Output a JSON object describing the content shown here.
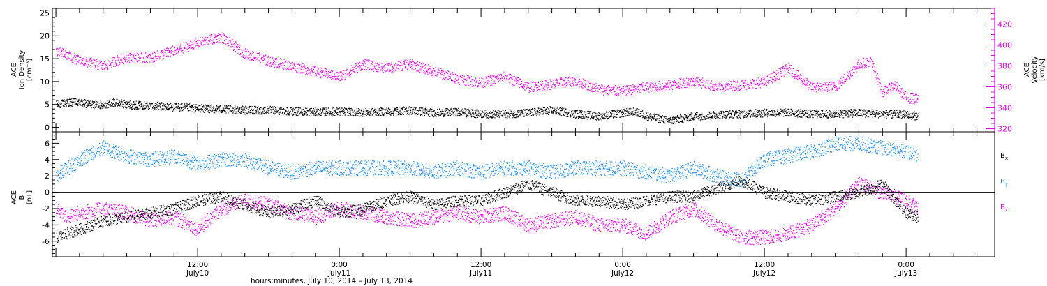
{
  "colors": {
    "density": "#000000",
    "velocity": "#ee00ee",
    "bx": "#000000",
    "by": "#1e90ff",
    "bz": "#ee00ee",
    "axis": "#000000"
  },
  "x_axis": {
    "title": "hours:minutes, July 10, 2014 – July 13, 2014",
    "ticks": [
      {
        "hours": 12,
        "time": "12:00",
        "date": "July10"
      },
      {
        "hours": 24,
        "time": "0:00",
        "date": "July11"
      },
      {
        "hours": 36,
        "time": "12:00",
        "date": "July11"
      },
      {
        "hours": 48,
        "time": "0:00",
        "date": "July12"
      },
      {
        "hours": 60,
        "time": "12:00",
        "date": "July12"
      },
      {
        "hours": 72,
        "time": "0:00",
        "date": "July13"
      }
    ]
  },
  "panel1": {
    "ylabel_lines": [
      "ACE",
      "Ion Density",
      "[cm⁻³]"
    ],
    "y2label_lines": [
      "ACE",
      "Velocity",
      "[km/s]"
    ]
  },
  "panel2": {
    "ylabel_lines": [
      "ACE",
      "B",
      "[nT]"
    ],
    "legend": [
      {
        "label": "B",
        "sub": "x",
        "color_key": "bx"
      },
      {
        "label": "B",
        "sub": "y",
        "color_key": "by"
      },
      {
        "label": "B",
        "sub": "z",
        "color_key": "bz"
      }
    ]
  },
  "chart_data": [
    {
      "type": "scatter",
      "ylabel": "ACE Ion Density [cm⁻³]",
      "y2label": "ACE Velocity [km/s]",
      "xlim_hours": [
        -0.3,
        79.5
      ],
      "ylim": [
        -1,
        26
      ],
      "y2lim": [
        317,
        435
      ],
      "yticks": [
        0,
        5,
        10,
        15,
        20,
        25
      ],
      "y2ticks": [
        320,
        340,
        360,
        380,
        400,
        420
      ],
      "grid": false,
      "series": [
        {
          "name": "Ion Density",
          "axis": "left",
          "color_key": "density",
          "x_hours": [
            0,
            1,
            2,
            3,
            4,
            5,
            6,
            8,
            10,
            12,
            14,
            16,
            18,
            20,
            22,
            24,
            26,
            28,
            30,
            32,
            34,
            36,
            38,
            40,
            42,
            44,
            46,
            48,
            49,
            50,
            52,
            54,
            56,
            58,
            60,
            62,
            64,
            66,
            68,
            70,
            72,
            73
          ],
          "y": [
            5,
            5.5,
            5.5,
            5,
            5,
            5.5,
            5,
            4.8,
            4.5,
            4.2,
            4,
            3.8,
            3.8,
            3.6,
            3.4,
            3.5,
            3.3,
            3.5,
            3.8,
            3.2,
            3.4,
            3,
            3,
            3.2,
            3.8,
            3,
            2.5,
            3.2,
            3.5,
            2.5,
            1.5,
            2.5,
            2.8,
            3,
            3.2,
            3.3,
            3,
            3,
            3.2,
            3,
            2.8,
            2.5
          ]
        },
        {
          "name": "Velocity",
          "axis": "right",
          "color_key": "velocity",
          "x_hours": [
            0,
            1,
            2,
            3,
            4,
            5,
            6,
            8,
            10,
            12,
            14,
            16,
            18,
            20,
            22,
            24,
            26,
            28,
            30,
            32,
            34,
            36,
            38,
            40,
            42,
            44,
            46,
            48,
            50,
            52,
            54,
            56,
            58,
            60,
            62,
            64,
            66,
            68,
            69,
            70,
            71,
            72,
            73
          ],
          "y": [
            395,
            390,
            385,
            383,
            380,
            385,
            388,
            388,
            395,
            402,
            408,
            392,
            385,
            380,
            375,
            370,
            382,
            378,
            382,
            375,
            368,
            364,
            370,
            360,
            363,
            366,
            358,
            356,
            360,
            362,
            366,
            360,
            362,
            365,
            378,
            360,
            360,
            382,
            385,
            355,
            362,
            350,
            348
          ]
        }
      ]
    },
    {
      "type": "scatter",
      "ylabel": "ACE B [nT]",
      "xlim_hours": [
        -0.3,
        79.5
      ],
      "ylim": [
        -7.9,
        7.4
      ],
      "yticks": [
        -6,
        -4,
        -2,
        0,
        2,
        4,
        6
      ],
      "zero_line": true,
      "grid": false,
      "series": [
        {
          "name": "Bx",
          "color_key": "bx",
          "x_hours": [
            0,
            1,
            2,
            4,
            6,
            8,
            10,
            12,
            14,
            16,
            18,
            20,
            22,
            24,
            26,
            28,
            30,
            32,
            34,
            36,
            38,
            40,
            42,
            44,
            46,
            48,
            50,
            52,
            54,
            56,
            58,
            60,
            62,
            64,
            66,
            68,
            70,
            72,
            73
          ],
          "y": [
            -5.5,
            -5,
            -4.5,
            -3.5,
            -3,
            -2.5,
            -2,
            -1,
            -0.5,
            -1.5,
            -2.5,
            -2,
            -1,
            -2.5,
            -2,
            -1,
            -0.5,
            -1.5,
            -1,
            -1,
            0,
            1,
            0,
            -1,
            -1,
            -1.5,
            -1,
            -0.5,
            -0.5,
            0.5,
            1.5,
            0,
            -0.5,
            -1,
            -0.5,
            0,
            1,
            -2.5,
            -3
          ]
        },
        {
          "name": "By",
          "color_key": "by",
          "x_hours": [
            0,
            1,
            2,
            4,
            6,
            8,
            10,
            12,
            14,
            16,
            18,
            20,
            22,
            24,
            26,
            28,
            30,
            32,
            34,
            36,
            38,
            40,
            42,
            44,
            46,
            48,
            50,
            52,
            54,
            56,
            58,
            60,
            62,
            64,
            66,
            68,
            70,
            72,
            73
          ],
          "y": [
            2,
            3,
            4,
            5.5,
            4.5,
            4,
            4.5,
            3.5,
            4,
            4,
            3,
            2.5,
            3,
            3,
            3,
            3,
            3,
            2.5,
            3,
            2.5,
            3,
            3,
            2.5,
            3,
            3,
            3,
            2.5,
            2,
            3,
            2,
            1.5,
            4,
            4.5,
            5,
            6,
            6,
            5.5,
            5,
            4.5
          ]
        },
        {
          "name": "Bz",
          "color_key": "bz",
          "x_hours": [
            0,
            1,
            2,
            4,
            6,
            8,
            10,
            12,
            14,
            16,
            18,
            20,
            22,
            24,
            26,
            28,
            30,
            32,
            34,
            36,
            38,
            40,
            42,
            44,
            46,
            48,
            50,
            52,
            54,
            56,
            58,
            60,
            62,
            64,
            66,
            68,
            70,
            72,
            73
          ],
          "y": [
            -2,
            -3,
            -2.5,
            -2,
            -2.5,
            -3.5,
            -3,
            -4.5,
            -2,
            -1,
            -1.5,
            -2.5,
            -3,
            -2,
            -2.5,
            -3,
            -3.5,
            -3,
            -2.5,
            -3,
            -2.5,
            -4,
            -3.5,
            -3,
            -4,
            -4,
            -5,
            -3,
            -2,
            -4,
            -5.5,
            -5.5,
            -5,
            -4,
            -2,
            1,
            0,
            -1,
            -2
          ]
        }
      ]
    }
  ]
}
